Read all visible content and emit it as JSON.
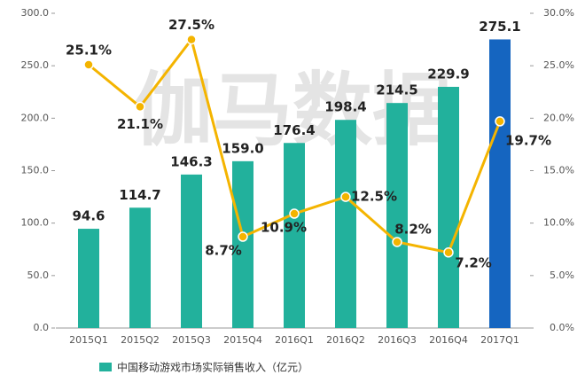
{
  "chart_data": {
    "type": "bar",
    "watermark": "伽马数据",
    "categories": [
      "2015Q1",
      "2015Q2",
      "2015Q3",
      "2015Q4",
      "2016Q1",
      "2016Q2",
      "2016Q3",
      "2016Q4",
      "2017Q1"
    ],
    "series": [
      {
        "name": "中国移动游戏市场实际销售收入（亿元）",
        "type": "bar",
        "color": "#22b19c",
        "colors": [
          "#22b19c",
          "#22b19c",
          "#22b19c",
          "#22b19c",
          "#22b19c",
          "#22b19c",
          "#22b19c",
          "#22b19c",
          "#1565c0"
        ],
        "values": [
          94.6,
          114.7,
          146.3,
          159.0,
          176.4,
          198.4,
          214.5,
          229.9,
          275.1
        ],
        "value_labels": [
          "94.6",
          "114.7",
          "146.3",
          "159.0",
          "176.4",
          "198.4",
          "214.5",
          "229.9",
          "275.1"
        ]
      },
      {
        "type": "line",
        "axis": "y2",
        "color": "#f4b400",
        "values": [
          25.1,
          21.1,
          27.5,
          8.7,
          10.9,
          12.5,
          8.2,
          7.2,
          19.7
        ],
        "value_labels": [
          "25.1%",
          "21.1%",
          "27.5%",
          "8.7%",
          "10.9%",
          "12.5%",
          "8.2%",
          "7.2%",
          "19.7%"
        ]
      }
    ],
    "ylim": [
      0,
      300
    ],
    "yticks": [
      {
        "value": 0,
        "label": "0.0"
      },
      {
        "value": 50,
        "label": "50.0"
      },
      {
        "value": 100,
        "label": "100.0"
      },
      {
        "value": 150,
        "label": "150.0"
      },
      {
        "value": 200,
        "label": "200.0"
      },
      {
        "value": 250,
        "label": "250.0"
      },
      {
        "value": 300,
        "label": "300.0"
      }
    ],
    "y2lim": [
      0,
      30
    ],
    "y2ticks": [
      {
        "value": 0,
        "label": "0.0%"
      },
      {
        "value": 5,
        "label": "5.0%"
      },
      {
        "value": 10,
        "label": "10.0%"
      },
      {
        "value": 15,
        "label": "15.0%"
      },
      {
        "value": 20,
        "label": "20.0%"
      },
      {
        "value": 25,
        "label": "25.0%"
      },
      {
        "value": 30,
        "label": "30.0%"
      }
    ]
  }
}
